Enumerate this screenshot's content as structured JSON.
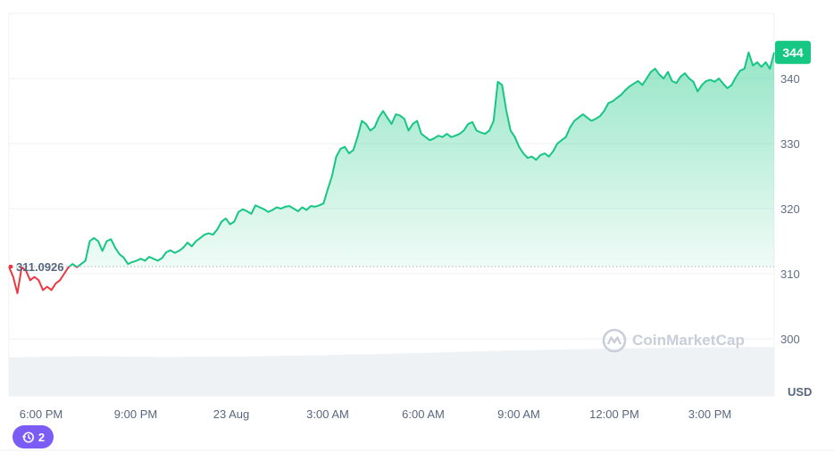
{
  "chart_data": {
    "type": "line",
    "unit_label": "USD",
    "y_ticks": [
      300,
      310,
      320,
      330,
      340
    ],
    "ylim": [
      290,
      351
    ],
    "x_ticks": [
      "6:00 PM",
      "9:00 PM",
      "23 Aug",
      "3:00 AM",
      "6:00 AM",
      "9:00 AM",
      "12:00 PM",
      "3:00 PM"
    ],
    "reference_price": 311.0926,
    "reference_label": "311.0926",
    "last_price_label": "344",
    "colors": {
      "up": "#16c784",
      "down": "#ea3943",
      "volume": "#eff2f5",
      "badge": "#16c784"
    },
    "series": [
      {
        "values": [
          311.09,
          309.5,
          307.0,
          311.0,
          310.5,
          309.0,
          309.5,
          309.0,
          307.5,
          308.0,
          307.5,
          308.5,
          309.0,
          310.0,
          311.0,
          311.5,
          311.0,
          311.5,
          312.0,
          315.0,
          315.5,
          315.0,
          313.5,
          315.0,
          315.3,
          314.0,
          313.0,
          312.5,
          311.5,
          311.8,
          312.0,
          312.3,
          312.0,
          312.6,
          312.3,
          312.0,
          312.4,
          313.3,
          313.6,
          313.2,
          313.5,
          314.0,
          314.8,
          314.2,
          315.0,
          315.5,
          316.0,
          316.2,
          316.0,
          316.8,
          318.0,
          318.5,
          317.6,
          318.0,
          319.5,
          319.9,
          319.6,
          319.2,
          320.5,
          320.2,
          319.9,
          319.5,
          319.8,
          320.2,
          320.0,
          320.3,
          320.4,
          320.0,
          319.6,
          320.2,
          319.8,
          320.4,
          320.3,
          320.5,
          320.8,
          323.0,
          325.0,
          328.0,
          329.2,
          329.5,
          328.5,
          329.0,
          331.0,
          333.5,
          333.0,
          332.0,
          332.5,
          334.0,
          335.0,
          334.0,
          333.0,
          334.5,
          334.3,
          333.8,
          332.0,
          333.0,
          333.5,
          331.5,
          331.0,
          330.5,
          330.8,
          331.2,
          331.0,
          331.5,
          331.0,
          331.2,
          331.5,
          332.0,
          333.0,
          333.3,
          332.0,
          331.7,
          331.5,
          332.0,
          333.5,
          339.5,
          339.0,
          335.0,
          332.0,
          331.0,
          329.5,
          328.5,
          327.8,
          328.0,
          327.5,
          328.2,
          328.5,
          328.0,
          328.8,
          330.0,
          330.5,
          331.0,
          332.5,
          333.5,
          334.0,
          334.5,
          334.0,
          333.5,
          333.8,
          334.2,
          335.0,
          336.2,
          336.5,
          337.0,
          337.5,
          338.2,
          338.8,
          339.2,
          339.6,
          339.0,
          340.0,
          341.0,
          341.5,
          340.6,
          340.0,
          341.0,
          339.6,
          339.3,
          340.3,
          340.8,
          340.0,
          339.5,
          338.0,
          339.0,
          339.6,
          339.8,
          339.5,
          340.0,
          339.2,
          338.5,
          339.0,
          340.2,
          341.2,
          341.5,
          344.0,
          342.0,
          342.5,
          341.8,
          342.5,
          341.5,
          344.0
        ]
      }
    ],
    "volume_values": [
      0.55,
      0.56,
      0.58,
      0.58,
      0.59,
      0.59,
      0.58,
      0.57,
      0.57,
      0.56,
      0.56,
      0.57,
      0.57,
      0.58,
      0.58,
      0.59,
      0.6,
      0.61,
      0.62,
      0.63,
      0.64,
      0.66,
      0.67,
      0.68,
      0.7,
      0.72,
      0.73,
      0.75,
      0.77,
      0.79,
      0.8,
      0.82,
      0.83,
      0.84,
      0.86,
      0.87,
      0.88,
      0.89,
      0.9,
      0.91,
      0.92,
      0.93,
      0.94,
      0.94,
      0.95,
      0.95,
      0.96,
      0.96
    ]
  },
  "watermark": "CoinMarketCap",
  "badge": {
    "count": "2"
  }
}
